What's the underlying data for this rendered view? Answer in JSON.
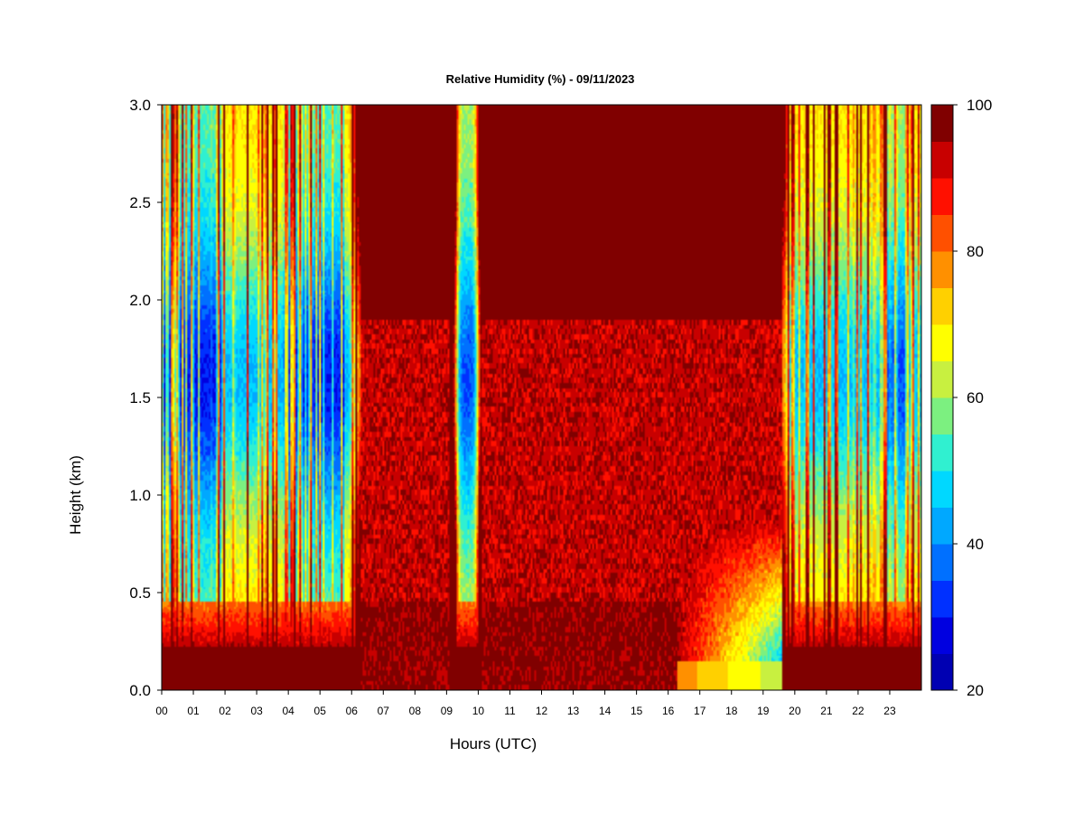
{
  "chart_data": {
    "type": "heatmap",
    "title": "Relative Humidity (%) - 09/11/2023",
    "xlabel": "Hours (UTC)",
    "ylabel": "Height (km)",
    "x_ticks": [
      "00",
      "01",
      "02",
      "03",
      "04",
      "05",
      "06",
      "07",
      "08",
      "09",
      "10",
      "11",
      "12",
      "13",
      "14",
      "15",
      "16",
      "17",
      "18",
      "19",
      "20",
      "21",
      "22",
      "23"
    ],
    "x_range_hours": [
      0,
      24
    ],
    "y_ticks": [
      "0.0",
      "0.5",
      "1.0",
      "1.5",
      "2.0",
      "2.5",
      "3.0"
    ],
    "y_range_km": [
      0,
      3.0
    ],
    "colorbar": {
      "ticks": [
        "20",
        "40",
        "60",
        "80",
        "100"
      ],
      "range": [
        20,
        100
      ],
      "levels": [
        20,
        25,
        30,
        35,
        40,
        45,
        50,
        55,
        60,
        65,
        70,
        75,
        80,
        85,
        90,
        95,
        100
      ],
      "colors": [
        "#00008b",
        "#0000b2",
        "#0000e0",
        "#0030ff",
        "#0070ff",
        "#00a8ff",
        "#00d8ff",
        "#30f0d0",
        "#7cf080",
        "#c8f040",
        "#ffff00",
        "#ffd000",
        "#ff9000",
        "#ff5000",
        "#ff1000",
        "#c80000",
        "#800000"
      ]
    },
    "description_regions": [
      {
        "hours": [
          0,
          6.3
        ],
        "pattern": "dry aloft (RH 25-55%) with moist surface layer below 0.4 km"
      },
      {
        "hours": [
          6.3,
          9.2
        ],
        "pattern": "saturated (RH 90-100%)"
      },
      {
        "hours": [
          9.2,
          10.1
        ],
        "pattern": "dry column 0.4-3.0 km (RH 30-55%)"
      },
      {
        "hours": [
          10.1,
          19.6
        ],
        "pattern": "saturated aloft, RH 85-100%; drier near surface after 16 UTC (RH 65-85%)"
      },
      {
        "hours": [
          19.6,
          24
        ],
        "pattern": "mixed dry/moist streaks, RH 35-90%"
      }
    ]
  }
}
